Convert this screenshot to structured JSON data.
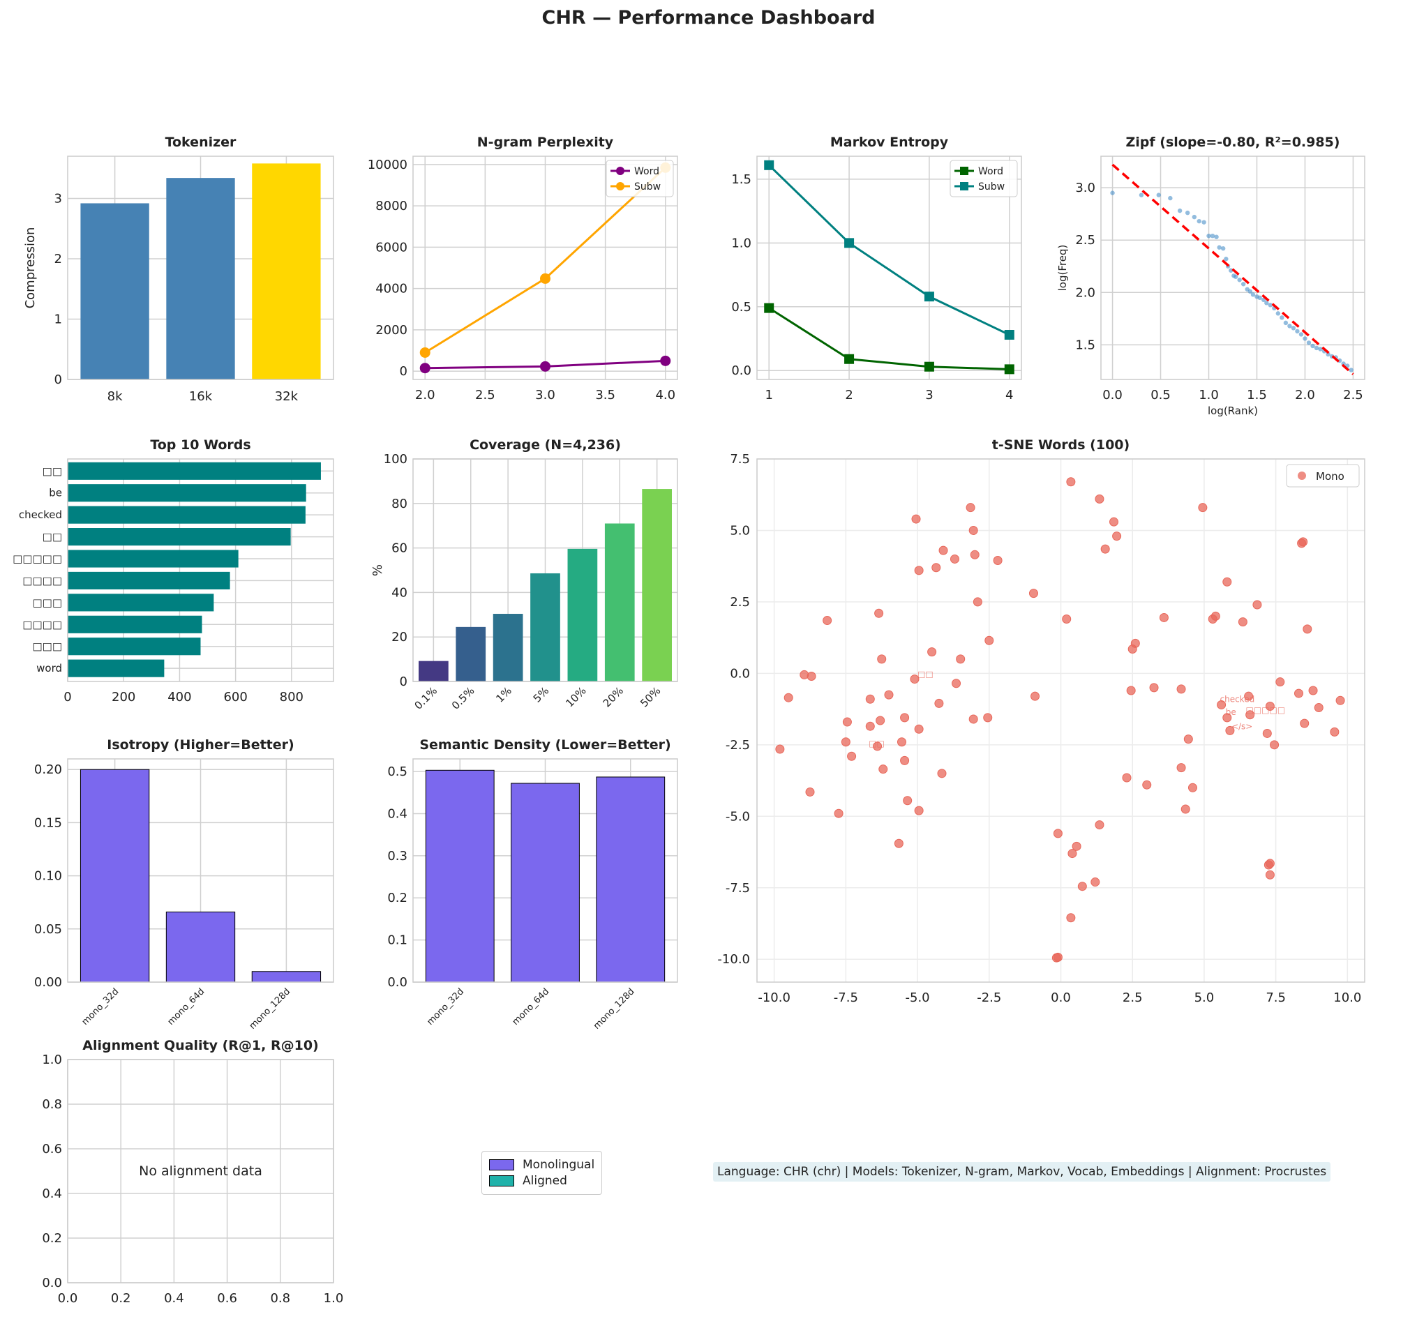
{
  "title": "CHR — Performance Dashboard",
  "footer": "Language: CHR (chr)  |  Models: Tokenizer, N-gram, Markov, Vocab, Embeddings  |  Alignment: Procrustes",
  "legend": {
    "items": [
      {
        "label": "Monolingual",
        "color": "#7b68ee"
      },
      {
        "label": "Aligned",
        "color": "#20b2aa"
      }
    ]
  },
  "chart_data": [
    {
      "id": "tokenizer",
      "type": "bar",
      "title": "Tokenizer",
      "ylabel": "Compression",
      "categories": [
        "8k",
        "16k",
        "32k"
      ],
      "values": [
        2.92,
        3.34,
        3.58
      ],
      "colors": [
        "#4682b4",
        "#4682b4",
        "#ffd700"
      ],
      "ylim": [
        0,
        3.7
      ],
      "yticks": [
        0,
        1,
        2,
        3
      ],
      "grid": true
    },
    {
      "id": "ngram",
      "type": "line",
      "title": "N-gram Perplexity",
      "x": [
        2,
        3,
        4
      ],
      "xlim": [
        1.9,
        4.1
      ],
      "xticks": [
        "2.0",
        "2.5",
        "3.0",
        "3.5",
        "4.0"
      ],
      "ylim": [
        -400,
        10400
      ],
      "yticks": [
        0,
        2000,
        4000,
        6000,
        8000,
        10000
      ],
      "series": [
        {
          "name": "Word",
          "values": [
            150,
            230,
            500
          ],
          "color": "#800080",
          "marker": "circle"
        },
        {
          "name": "Subw",
          "values": [
            900,
            4480,
            9850
          ],
          "color": "#ffa500",
          "marker": "circle"
        }
      ],
      "legend": "top-right",
      "grid": true
    },
    {
      "id": "markov",
      "type": "line",
      "title": "Markov Entropy",
      "x": [
        1,
        2,
        3,
        4
      ],
      "xlim": [
        0.85,
        4.15
      ],
      "xticks": [
        "1",
        "2",
        "3",
        "4"
      ],
      "ylim": [
        -0.07,
        1.68
      ],
      "yticks": [
        "0.0",
        "0.5",
        "1.0",
        "1.5"
      ],
      "series": [
        {
          "name": "Word",
          "values": [
            0.49,
            0.09,
            0.03,
            0.01
          ],
          "color": "#006400",
          "marker": "square"
        },
        {
          "name": "Subw",
          "values": [
            1.61,
            1.0,
            0.58,
            0.28
          ],
          "color": "#008080",
          "marker": "square"
        }
      ],
      "legend": "top-right",
      "grid": true
    },
    {
      "id": "zipf",
      "type": "scatter",
      "title": "Zipf (slope=-0.80, R²=0.985)",
      "xlabel": "log(Rank)",
      "ylabel": "log(Freq)",
      "xlim": [
        -0.12,
        2.62
      ],
      "xticks": [
        "0.0",
        "0.5",
        "1.0",
        "1.5",
        "2.0",
        "2.5"
      ],
      "ylim": [
        1.17,
        3.3
      ],
      "yticks": [
        "1.5",
        "2.0",
        "2.5",
        "3.0"
      ],
      "fit": {
        "slope": -0.8,
        "intercept": 3.22,
        "color": "#ff0000"
      },
      "color": "#4a90c8",
      "points": [
        [
          0,
          2.95
        ],
        [
          0.3,
          2.93
        ],
        [
          0.48,
          2.93
        ],
        [
          0.6,
          2.9
        ],
        [
          0.7,
          2.78
        ],
        [
          0.78,
          2.76
        ],
        [
          0.85,
          2.72
        ],
        [
          0.9,
          2.68
        ],
        [
          0.95,
          2.67
        ],
        [
          1.0,
          2.54
        ],
        [
          1.04,
          2.54
        ],
        [
          1.08,
          2.53
        ],
        [
          1.11,
          2.43
        ],
        [
          1.15,
          2.42
        ],
        [
          1.18,
          2.32
        ],
        [
          1.2,
          2.25
        ],
        [
          1.23,
          2.21
        ],
        [
          1.26,
          2.16
        ],
        [
          1.28,
          2.15
        ],
        [
          1.32,
          2.12
        ],
        [
          1.36,
          2.08
        ],
        [
          1.4,
          2.03
        ],
        [
          1.43,
          2.01
        ],
        [
          1.46,
          1.98
        ],
        [
          1.5,
          1.96
        ],
        [
          1.53,
          1.95
        ],
        [
          1.57,
          1.93
        ],
        [
          1.6,
          1.9
        ],
        [
          1.64,
          1.88
        ],
        [
          1.68,
          1.85
        ],
        [
          1.72,
          1.8
        ],
        [
          1.76,
          1.76
        ],
        [
          1.8,
          1.71
        ],
        [
          1.84,
          1.68
        ],
        [
          1.88,
          1.66
        ],
        [
          1.92,
          1.63
        ],
        [
          1.96,
          1.6
        ],
        [
          2.0,
          1.56
        ],
        [
          2.04,
          1.52
        ],
        [
          2.08,
          1.49
        ],
        [
          2.12,
          1.47
        ],
        [
          2.16,
          1.46
        ],
        [
          2.2,
          1.44
        ],
        [
          2.24,
          1.41
        ],
        [
          2.28,
          1.39
        ],
        [
          2.32,
          1.38
        ],
        [
          2.36,
          1.35
        ],
        [
          2.4,
          1.32
        ],
        [
          2.44,
          1.3
        ],
        [
          2.48,
          1.26
        ]
      ],
      "grid": true
    },
    {
      "id": "top-words",
      "type": "barh",
      "title": "Top 10 Words",
      "categories": [
        "□□",
        "be",
        "checked",
        "□□",
        "□□□□□",
        "□□□□",
        "□□□",
        "□□□□",
        "□□□",
        "word"
      ],
      "values": [
        905,
        852,
        850,
        797,
        610,
        580,
        522,
        480,
        475,
        345
      ],
      "color": "#008080",
      "xlim": [
        0,
        950
      ],
      "xticks": [
        0,
        200,
        400,
        600,
        800
      ],
      "grid": true
    },
    {
      "id": "coverage",
      "type": "bar",
      "title": "Coverage (N=4,236)",
      "ylabel": "%",
      "categories": [
        "0.1%",
        "0.5%",
        "1%",
        "5%",
        "10%",
        "20%",
        "50%"
      ],
      "values": [
        9.2,
        24.5,
        30.4,
        48.6,
        59.6,
        71.0,
        86.5
      ],
      "colors": [
        "#443983",
        "#355f8d",
        "#2c728e",
        "#21918c",
        "#25ab82",
        "#44bf70",
        "#7ad151"
      ],
      "ylim": [
        0,
        100
      ],
      "yticks": [
        0,
        20,
        40,
        60,
        80,
        100
      ],
      "grid": true
    },
    {
      "id": "tsne",
      "type": "scatter",
      "title": "t-SNE Words (100)",
      "xlim": [
        -10.6,
        10.6
      ],
      "xticks": [
        "-10.0",
        "-7.5",
        "-5.0",
        "-2.5",
        "0.0",
        "2.5",
        "5.0",
        "7.5",
        "10.0"
      ],
      "ylim": [
        -10.8,
        7.5
      ],
      "yticks": [
        "-10.0",
        "-7.5",
        "-5.0",
        "-2.5",
        "0.0",
        "2.5",
        "5.0",
        "7.5"
      ],
      "series": [
        {
          "name": "Mono",
          "color": "#e8675a"
        }
      ],
      "legend": "top-right",
      "grid": true,
      "points": [
        [
          0.35,
          6.7
        ],
        [
          -3.15,
          5.8
        ],
        [
          4.95,
          5.8
        ],
        [
          1.35,
          6.1
        ],
        [
          -5.05,
          5.4
        ],
        [
          -3.05,
          5.0
        ],
        [
          1.85,
          5.3
        ],
        [
          1.95,
          4.8
        ],
        [
          8.4,
          4.55
        ],
        [
          8.45,
          4.6
        ],
        [
          -4.1,
          4.3
        ],
        [
          1.55,
          4.35
        ],
        [
          -3.0,
          4.15
        ],
        [
          -3.7,
          4.0
        ],
        [
          -2.2,
          3.95
        ],
        [
          -4.95,
          3.6
        ],
        [
          -4.35,
          3.7
        ],
        [
          5.8,
          3.2
        ],
        [
          -2.9,
          2.5
        ],
        [
          -0.95,
          2.8
        ],
        [
          -6.35,
          2.1
        ],
        [
          -8.15,
          1.85
        ],
        [
          0.2,
          1.9
        ],
        [
          3.6,
          1.95
        ],
        [
          5.3,
          1.9
        ],
        [
          5.4,
          2.0
        ],
        [
          6.35,
          1.8
        ],
        [
          6.85,
          2.4
        ],
        [
          8.6,
          1.55
        ],
        [
          2.6,
          1.05
        ],
        [
          2.5,
          0.85
        ],
        [
          -2.5,
          1.15
        ],
        [
          -4.5,
          0.75
        ],
        [
          -3.5,
          0.5
        ],
        [
          -6.25,
          0.5
        ],
        [
          -8.95,
          -0.05
        ],
        [
          -8.7,
          -0.1
        ],
        [
          -5.1,
          -0.2
        ],
        [
          -3.65,
          -0.35
        ],
        [
          -9.5,
          -0.85
        ],
        [
          -6.0,
          -0.75
        ],
        [
          -6.65,
          -0.9
        ],
        [
          -4.25,
          -1.05
        ],
        [
          -0.9,
          -0.8
        ],
        [
          2.45,
          -0.6
        ],
        [
          3.25,
          -0.5
        ],
        [
          4.2,
          -0.55
        ],
        [
          7.65,
          -0.3
        ],
        [
          8.3,
          -0.7
        ],
        [
          8.8,
          -0.6
        ],
        [
          9.75,
          -0.95
        ],
        [
          9.0,
          -1.2
        ],
        [
          8.5,
          -1.75
        ],
        [
          9.55,
          -2.05
        ],
        [
          7.3,
          -1.15
        ],
        [
          6.55,
          -0.8
        ],
        [
          5.6,
          -1.1
        ],
        [
          5.8,
          -1.55
        ],
        [
          6.6,
          -1.45
        ],
        [
          5.9,
          -2.0
        ],
        [
          7.2,
          -2.1
        ],
        [
          7.45,
          -2.5
        ],
        [
          4.45,
          -2.3
        ],
        [
          -7.45,
          -1.7
        ],
        [
          -6.65,
          -1.85
        ],
        [
          -6.3,
          -1.65
        ],
        [
          -5.45,
          -1.55
        ],
        [
          -4.95,
          -1.95
        ],
        [
          -3.05,
          -1.6
        ],
        [
          -2.55,
          -1.55
        ],
        [
          -7.5,
          -2.4
        ],
        [
          -6.4,
          -2.55
        ],
        [
          -5.55,
          -2.4
        ],
        [
          -9.8,
          -2.65
        ],
        [
          -7.3,
          -2.9
        ],
        [
          -5.45,
          -3.05
        ],
        [
          -6.2,
          -3.35
        ],
        [
          -4.15,
          -3.5
        ],
        [
          2.3,
          -3.65
        ],
        [
          3.0,
          -3.9
        ],
        [
          4.2,
          -3.3
        ],
        [
          4.6,
          -4.0
        ],
        [
          -8.75,
          -4.15
        ],
        [
          -5.35,
          -4.45
        ],
        [
          -4.95,
          -4.8
        ],
        [
          4.35,
          -4.75
        ],
        [
          -7.75,
          -4.9
        ],
        [
          1.35,
          -5.3
        ],
        [
          -0.1,
          -5.6
        ],
        [
          -5.65,
          -5.95
        ],
        [
          0.55,
          -6.05
        ],
        [
          0.4,
          -6.3
        ],
        [
          7.25,
          -6.7
        ],
        [
          7.3,
          -6.65
        ],
        [
          7.3,
          -7.05
        ],
        [
          1.2,
          -7.3
        ],
        [
          0.75,
          -7.45
        ],
        [
          0.35,
          -8.55
        ],
        [
          -0.15,
          -9.95
        ],
        [
          -0.1,
          -9.93
        ]
      ],
      "annotations": [
        {
          "text": "checked",
          "x": 5.55,
          "y": -1.0
        },
        {
          "text": "be",
          "x": 5.75,
          "y": -1.45
        },
        {
          "text": "</s>",
          "x": 5.95,
          "y": -1.95
        },
        {
          "text": "□□□□□",
          "x": 6.45,
          "y": -1.38
        },
        {
          "text": "□□",
          "x": -5.0,
          "y": -0.12
        },
        {
          "text": "□□",
          "x": -6.7,
          "y": -2.55
        }
      ]
    },
    {
      "id": "isotropy",
      "type": "bar",
      "title": "Isotropy (Higher=Better)",
      "categories": [
        "mono_32d",
        "mono_64d",
        "mono_128d"
      ],
      "values": [
        0.2,
        0.066,
        0.01
      ],
      "color": "#7b68ee",
      "ylim": [
        0,
        0.21
      ],
      "yticks": [
        "0.00",
        "0.05",
        "0.10",
        "0.15",
        "0.20"
      ],
      "grid": true
    },
    {
      "id": "semantic-density",
      "type": "bar",
      "title": "Semantic Density (Lower=Better)",
      "categories": [
        "mono_32d",
        "mono_64d",
        "mono_128d"
      ],
      "values": [
        0.503,
        0.472,
        0.487
      ],
      "color": "#7b68ee",
      "ylim": [
        0,
        0.53
      ],
      "yticks": [
        "0.0",
        "0.1",
        "0.2",
        "0.3",
        "0.4",
        "0.5"
      ],
      "grid": true
    },
    {
      "id": "alignment",
      "type": "bar",
      "title": "Alignment Quality (R@1, R@10)",
      "message": "No alignment data",
      "xlim": [
        0,
        1
      ],
      "ylim": [
        0,
        1
      ],
      "xticks": [
        "0.0",
        "0.2",
        "0.4",
        "0.6",
        "0.8",
        "1.0"
      ],
      "yticks": [
        "0.0",
        "0.2",
        "0.4",
        "0.6",
        "0.8",
        "1.0"
      ],
      "grid": true
    }
  ]
}
